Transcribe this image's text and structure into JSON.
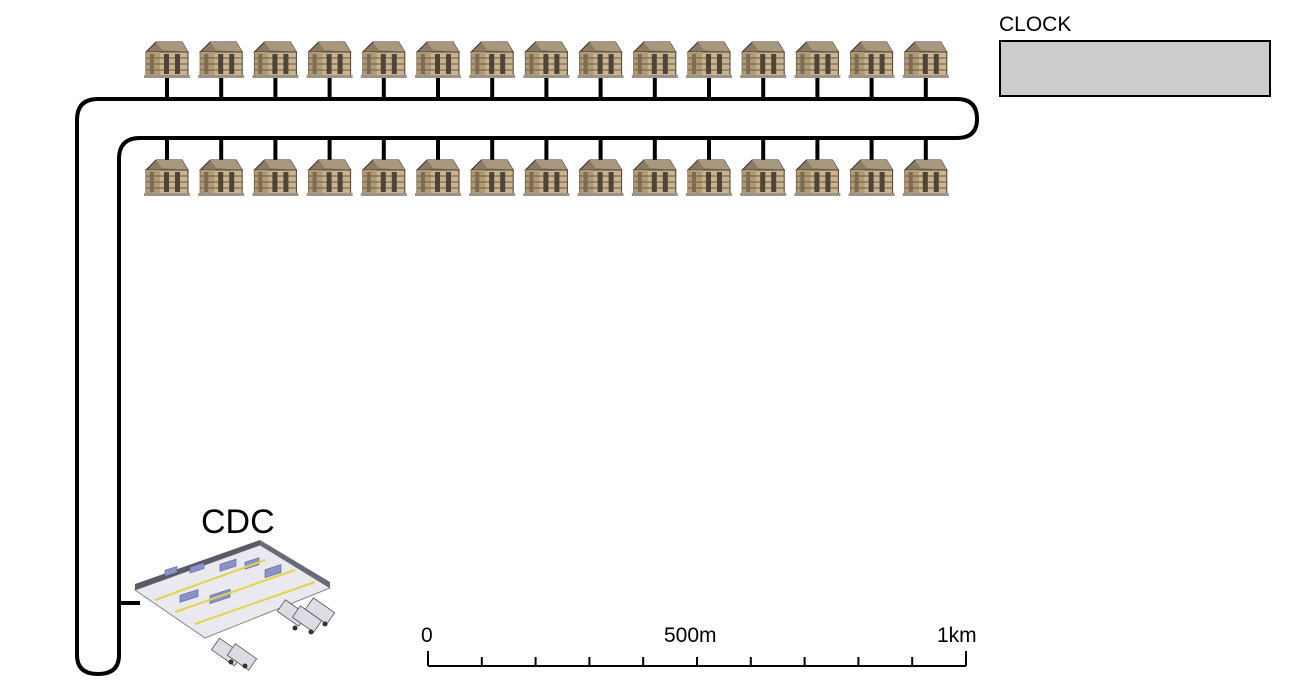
{
  "clock": {
    "label": "CLOCK",
    "value": ""
  },
  "depot": {
    "label": "CDC"
  },
  "scale_bar": {
    "labels": [
      "0",
      "500m",
      "1km"
    ],
    "minor_divisions": 10
  },
  "houses": {
    "top_row_count": 15,
    "bottom_row_count": 15
  },
  "colors": {
    "road": "#000000",
    "clock_fill": "#cccccc",
    "house_wall": "#c9b48f",
    "house_roof": "#8a7a66"
  }
}
